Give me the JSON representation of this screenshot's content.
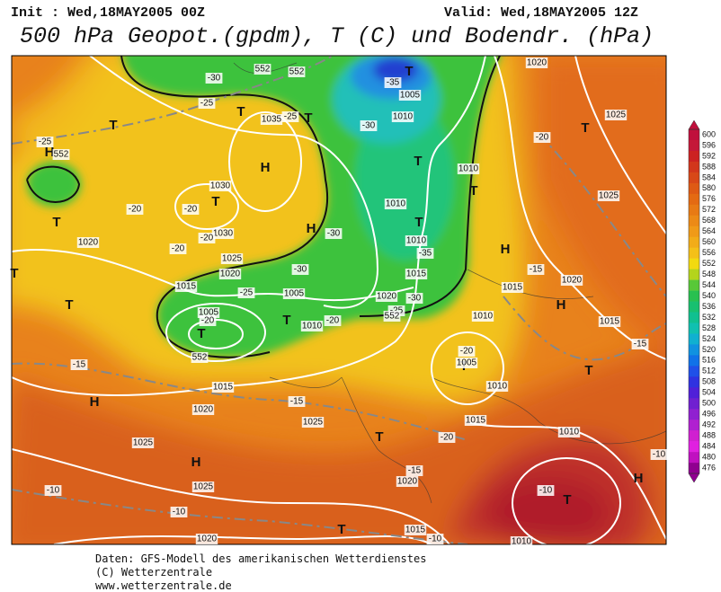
{
  "header": {
    "init": "Init : Wed,18MAY2005 00Z",
    "valid": "Valid: Wed,18MAY2005 12Z",
    "title": "500 hPa Geopot.(gpdm), T (C) und Bodendr. (hPa)"
  },
  "footer": {
    "lines": [
      "Daten: GFS-Modell des amerikanischen Wetterdienstes",
      "(C) Wetterzentrale",
      "www.wetterzentrale.de"
    ]
  },
  "colorbar": {
    "labels": [
      600,
      596,
      592,
      588,
      584,
      580,
      576,
      572,
      568,
      564,
      560,
      556,
      552,
      548,
      544,
      540,
      536,
      532,
      528,
      524,
      520,
      516,
      512,
      508,
      504,
      500,
      496,
      492,
      488,
      484,
      480,
      476
    ],
    "colors": [
      "#c0103c",
      "#c41838",
      "#cc2222",
      "#d2361c",
      "#d84818",
      "#de5a14",
      "#e46a12",
      "#e87a14",
      "#ec8a16",
      "#f09a18",
      "#f2ac18",
      "#f4c018",
      "#f2da10",
      "#b4d41c",
      "#58c838",
      "#28c050",
      "#18c070",
      "#10c090",
      "#10c0b0",
      "#10b0d0",
      "#1092e0",
      "#1072e8",
      "#2050e8",
      "#3032e0",
      "#5020d8",
      "#7020d0",
      "#9020d0",
      "#b020d0",
      "#d020d0",
      "#e020e0",
      "#c010c0",
      "#900090"
    ]
  },
  "map": {
    "labels": [
      "T",
      "T",
      "T",
      "T",
      "H",
      "T",
      "T",
      "T",
      "T",
      "T",
      "H",
      "H",
      "T",
      "T",
      "T",
      "T",
      "H",
      "T",
      "T",
      "H",
      "T",
      "H",
      "T",
      "H",
      "T",
      "H",
      "T",
      "1020",
      "-30",
      "-35",
      "1005",
      "-25",
      "1035",
      "1010",
      "-25",
      "-30",
      "1025",
      "-25",
      "-20",
      "1010",
      "1030",
      "1025",
      "-20",
      "-20",
      "1010",
      "-30",
      "1030",
      "1020",
      "-20",
      "-20",
      "1010",
      "-35",
      "1025",
      "-30",
      "-15",
      "1020",
      "1015",
      "1015",
      "1020",
      "-25",
      "1005",
      "1015",
      "1020",
      "-30",
      "1005",
      "-20",
      "1010",
      "-25",
      "-20",
      "1015",
      "1010",
      "-15",
      "-20",
      "1005",
      "-15",
      "1010",
      "1015",
      "-15",
      "1020",
      "1025",
      "1015",
      "-20",
      "1010",
      "1025",
      "-15",
      "1020",
      "1025",
      "-10",
      "-10",
      "-10",
      "-10",
      "1015",
      "-10",
      "1020",
      "1010",
      "552",
      "552",
      "552",
      "552",
      "552"
    ]
  }
}
